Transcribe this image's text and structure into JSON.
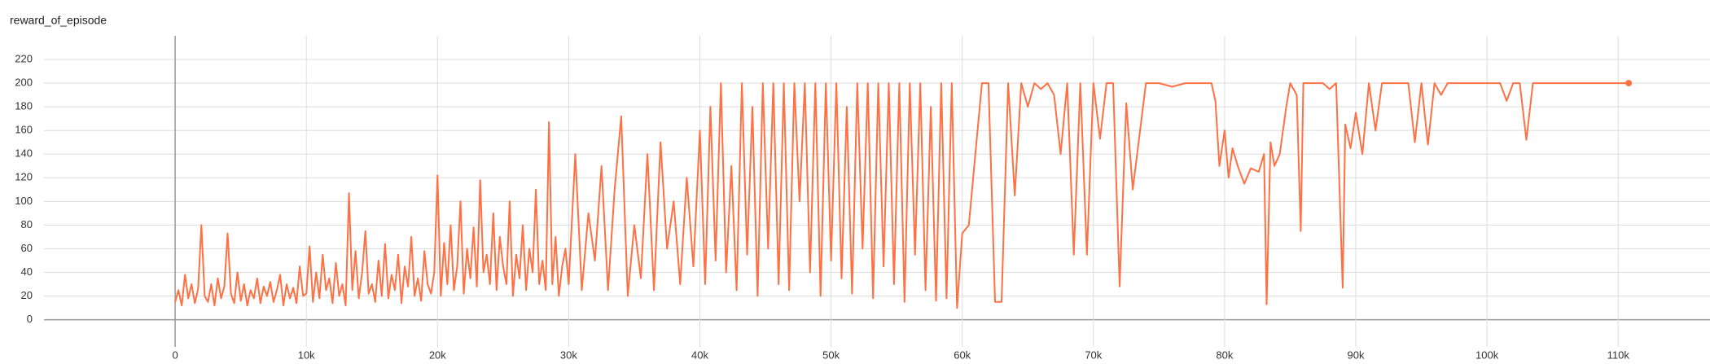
{
  "chart_data": {
    "type": "line",
    "title": "reward_of_episode",
    "color": "#ff7043",
    "grid": true,
    "xlim": [
      -10000,
      117000
    ],
    "ylim": [
      -23,
      240
    ],
    "xticks": [
      0,
      {
        "value": 10000,
        "label": "10k"
      },
      {
        "value": 20000,
        "label": "20k"
      },
      {
        "value": 30000,
        "label": "30k"
      },
      {
        "value": 40000,
        "label": "40k"
      },
      {
        "value": 50000,
        "label": "50k"
      },
      {
        "value": 60000,
        "label": "60k"
      },
      {
        "value": 70000,
        "label": "70k"
      },
      {
        "value": 80000,
        "label": "80k"
      },
      {
        "value": 90000,
        "label": "90k"
      },
      {
        "value": 100000,
        "label": "100k"
      },
      {
        "value": 110000,
        "label": "110k"
      }
    ],
    "yticks": [
      0,
      20,
      40,
      60,
      80,
      100,
      120,
      140,
      160,
      180,
      200,
      220
    ],
    "x": [
      0,
      250,
      500,
      750,
      1000,
      1250,
      1500,
      1750,
      2000,
      2250,
      2500,
      2750,
      3000,
      3250,
      3500,
      3750,
      4000,
      4250,
      4500,
      4750,
      5000,
      5250,
      5500,
      5750,
      6000,
      6250,
      6500,
      6750,
      7000,
      7250,
      7500,
      7750,
      8000,
      8250,
      8500,
      8750,
      9000,
      9250,
      9500,
      9750,
      10000,
      10250,
      10500,
      10750,
      11000,
      11250,
      11500,
      11750,
      12000,
      12250,
      12500,
      12750,
      13000,
      13250,
      13500,
      13750,
      14000,
      14250,
      14500,
      14750,
      15000,
      15250,
      15500,
      15750,
      16000,
      16250,
      16500,
      16750,
      17000,
      17250,
      17500,
      17750,
      18000,
      18250,
      18500,
      18750,
      19000,
      19250,
      19500,
      19750,
      20000,
      20250,
      20500,
      20750,
      21000,
      21250,
      21500,
      21750,
      22000,
      22250,
      22500,
      22750,
      23000,
      23250,
      23500,
      23750,
      24000,
      24250,
      24500,
      24750,
      25000,
      25250,
      25500,
      25750,
      26000,
      26250,
      26500,
      26750,
      27000,
      27250,
      27500,
      27750,
      28000,
      28250,
      28500,
      28750,
      29000,
      29250,
      29500,
      29750,
      30000,
      30500,
      31000,
      31500,
      32000,
      32500,
      33000,
      33500,
      34000,
      34500,
      35000,
      35500,
      36000,
      36500,
      37000,
      37500,
      38000,
      38500,
      39000,
      39500,
      40000,
      40400,
      40800,
      41200,
      41600,
      42000,
      42400,
      42800,
      43200,
      43600,
      44000,
      44400,
      44800,
      45200,
      45600,
      46000,
      46400,
      46800,
      47200,
      47600,
      48000,
      48400,
      48800,
      49200,
      49600,
      50000,
      50400,
      50800,
      51200,
      51600,
      52000,
      52400,
      52800,
      53200,
      53600,
      54000,
      54400,
      54800,
      55200,
      55600,
      56000,
      56400,
      56800,
      57200,
      57600,
      58000,
      58400,
      58800,
      59200,
      59600,
      60000,
      60500,
      61000,
      61500,
      62000,
      62500,
      63000,
      63500,
      64000,
      64500,
      65000,
      65500,
      66000,
      66500,
      67000,
      67500,
      68000,
      68500,
      69000,
      69500,
      70000,
      70500,
      71000,
      71500,
      72000,
      72500,
      73000,
      74000,
      75000,
      76000,
      77000,
      78000,
      79000,
      79300,
      79600,
      80000,
      80300,
      80600,
      81000,
      81500,
      82000,
      82600,
      83000,
      83200,
      83500,
      83800,
      84200,
      84700,
      85000,
      85500,
      85800,
      86000,
      86500,
      87000,
      87500,
      88000,
      88500,
      89000,
      89200,
      89600,
      90000,
      90500,
      91000,
      91500,
      92000,
      93000,
      94000,
      94500,
      95000,
      95500,
      96000,
      96500,
      97000,
      98000,
      99000,
      100000,
      101000,
      101500,
      102000,
      102500,
      103000,
      103500,
      104000,
      105000,
      107000,
      110800
    ],
    "values": [
      15,
      25,
      12,
      38,
      18,
      30,
      14,
      26,
      80,
      20,
      15,
      30,
      12,
      35,
      18,
      28,
      73,
      22,
      14,
      40,
      16,
      30,
      12,
      25,
      18,
      35,
      14,
      28,
      20,
      32,
      15,
      25,
      38,
      12,
      30,
      18,
      27,
      14,
      45,
      20,
      22,
      62,
      15,
      40,
      18,
      55,
      25,
      35,
      14,
      48,
      20,
      30,
      12,
      107,
      25,
      58,
      18,
      40,
      75,
      22,
      30,
      15,
      50,
      20,
      64,
      18,
      38,
      25,
      55,
      14,
      45,
      28,
      70,
      20,
      35,
      16,
      58,
      30,
      22,
      40,
      122,
      20,
      65,
      30,
      80,
      25,
      45,
      100,
      22,
      60,
      35,
      78,
      28,
      118,
      40,
      55,
      30,
      90,
      25,
      70,
      45,
      30,
      100,
      20,
      55,
      35,
      80,
      25,
      60,
      40,
      110,
      30,
      50,
      25,
      167,
      30,
      70,
      20,
      45,
      60,
      30,
      140,
      25,
      90,
      50,
      130,
      25,
      110,
      172,
      20,
      80,
      35,
      140,
      25,
      150,
      60,
      100,
      30,
      120,
      45,
      160,
      30,
      180,
      50,
      200,
      40,
      130,
      25,
      200,
      55,
      180,
      20,
      200,
      60,
      200,
      30,
      200,
      25,
      200,
      100,
      200,
      40,
      200,
      20,
      200,
      50,
      200,
      35,
      180,
      22,
      200,
      60,
      200,
      18,
      200,
      45,
      200,
      30,
      200,
      15,
      200,
      55,
      200,
      25,
      180,
      16,
      200,
      18,
      200,
      10,
      73,
      80,
      140,
      200,
      200,
      15,
      15,
      200,
      105,
      200,
      180,
      200,
      195,
      200,
      190,
      140,
      200,
      55,
      200,
      55,
      200,
      153,
      200,
      200,
      28,
      183,
      110,
      200,
      200,
      197,
      200,
      200,
      200,
      185,
      130,
      160,
      120,
      145,
      130,
      115,
      128,
      125,
      140,
      13,
      150,
      130,
      140,
      180,
      200,
      190,
      75,
      200,
      200,
      200,
      200,
      195,
      200,
      27,
      165,
      145,
      175,
      140,
      200,
      160,
      200,
      200,
      200,
      150,
      200,
      148,
      200,
      190,
      200,
      200,
      200,
      200,
      200,
      185,
      200,
      200,
      152,
      200,
      200,
      200,
      200,
      200
    ]
  }
}
